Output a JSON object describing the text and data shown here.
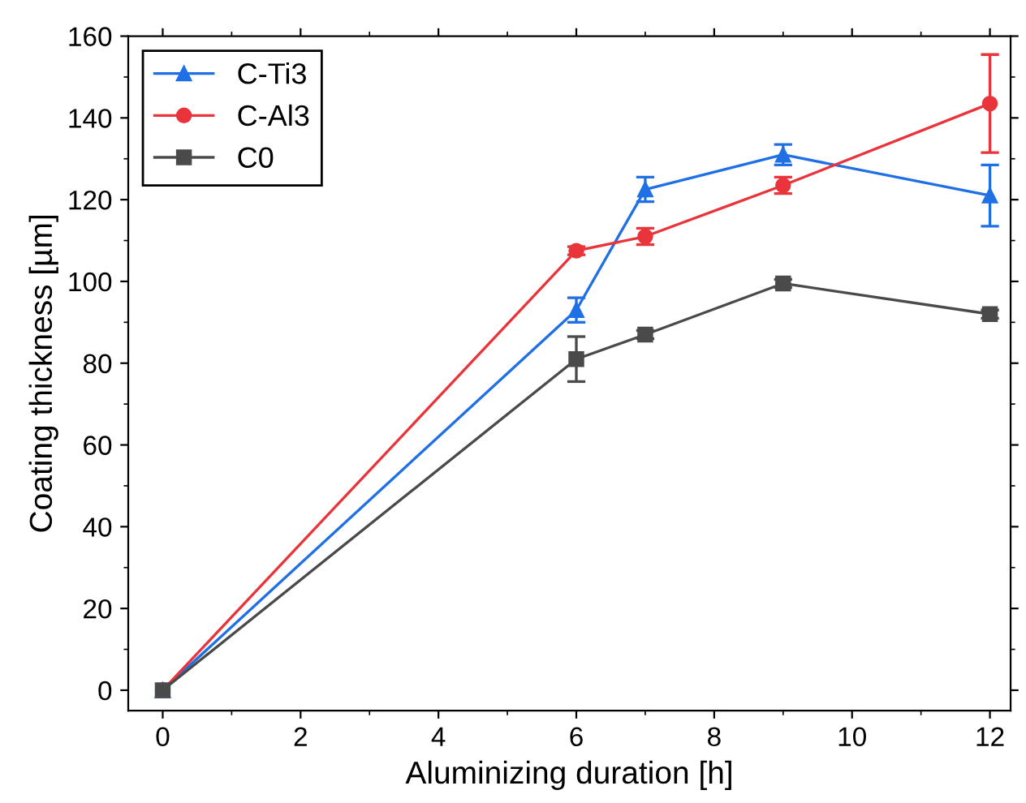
{
  "chart_data": {
    "type": "line",
    "xlabel": "Aluminizing duration [h]",
    "ylabel": "Coating thickness [µm]",
    "x": [
      0,
      6,
      7,
      9,
      12
    ],
    "series": [
      {
        "name": "C-Ti3",
        "color": "#1f6fe5",
        "marker": "triangle",
        "values": [
          0,
          93,
          122.5,
          131,
          121
        ],
        "errors": [
          null,
          3,
          3,
          2.5,
          7.5
        ]
      },
      {
        "name": "C-Al3",
        "color": "#e8343a",
        "marker": "circle",
        "values": [
          0,
          107.5,
          111,
          123.5,
          143.5
        ],
        "errors": [
          null,
          1,
          2,
          2,
          12
        ]
      },
      {
        "name": "C0",
        "color": "#4a4a4a",
        "marker": "square",
        "values": [
          0,
          81,
          87,
          99.5,
          92
        ],
        "errors": [
          null,
          5.5,
          1,
          1,
          1
        ]
      }
    ],
    "xlim": [
      -0.5,
      12.3
    ],
    "ylim": [
      -5,
      160
    ],
    "xticks": [
      0,
      2,
      4,
      6,
      8,
      10,
      12
    ],
    "yticks": [
      0,
      20,
      40,
      60,
      80,
      100,
      120,
      140,
      160
    ],
    "grid": false,
    "legend": "top left",
    "line_style": "solid"
  }
}
